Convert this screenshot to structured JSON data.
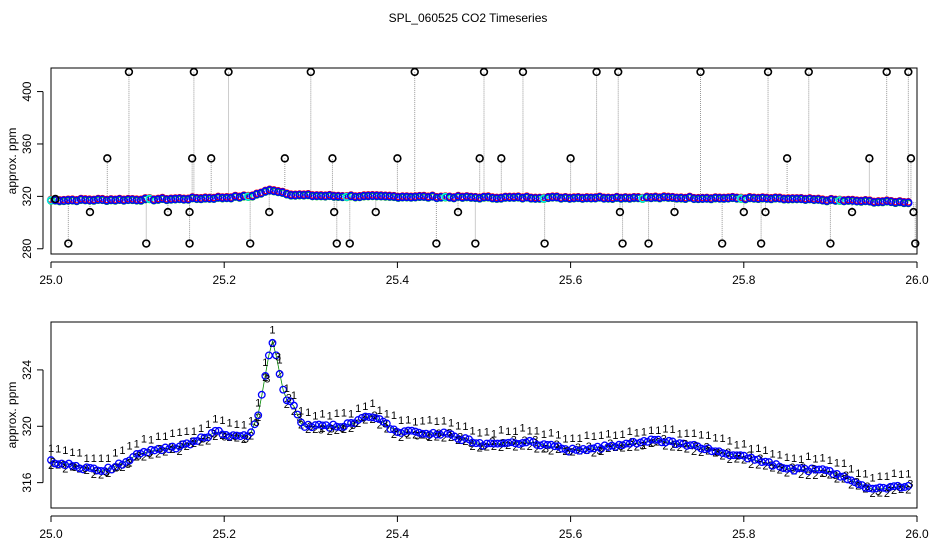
{
  "title": "SPL_060525  CO2 Timeseries",
  "chart_data": [
    {
      "type": "scatter",
      "panel": "top",
      "ylabel": "approx. ppm",
      "xlabel": "",
      "xlim": [
        25.0,
        26.0
      ],
      "ylim": [
        276,
        418
      ],
      "x_ticks": [
        "25.0",
        "25.2",
        "25.4",
        "25.6",
        "25.8",
        "26.0"
      ],
      "y_ticks": [
        "280",
        "320",
        "360",
        "400"
      ],
      "grid": false,
      "base_series": {
        "x": [
          25.0,
          25.1,
          25.15,
          25.2,
          25.23,
          25.255,
          25.28,
          25.33,
          25.35,
          25.45,
          25.5,
          25.6,
          25.66,
          25.7,
          25.8,
          25.85,
          25.9,
          25.95,
          25.99
        ],
        "y": [
          317,
          317.5,
          318,
          319,
          320,
          325,
          321,
          320,
          320,
          319.5,
          319,
          319,
          319,
          319,
          318.5,
          318,
          317,
          316,
          315.5
        ]
      },
      "outliers": {
        "x": [
          25.005,
          25.02,
          25.045,
          25.065,
          25.09,
          25.11,
          25.135,
          25.16,
          25.16,
          25.163,
          25.165,
          25.185,
          25.205,
          25.23,
          25.252,
          25.27,
          25.3,
          25.325,
          25.327,
          25.33,
          25.345,
          25.375,
          25.4,
          25.42,
          25.445,
          25.47,
          25.49,
          25.495,
          25.5,
          25.52,
          25.545,
          25.57,
          25.6,
          25.63,
          25.655,
          25.657,
          25.66,
          25.69,
          25.72,
          25.75,
          25.775,
          25.8,
          25.82,
          25.825,
          25.828,
          25.85,
          25.875,
          25.9,
          25.925,
          25.945,
          25.965,
          25.99,
          25.993,
          25.996,
          25.998
        ],
        "y": [
          318,
          284,
          308,
          349,
          415,
          284,
          308,
          284,
          308,
          349,
          415,
          349,
          415,
          284,
          308,
          349,
          415,
          349,
          308,
          284,
          284,
          308,
          349,
          415,
          284,
          308,
          284,
          349,
          415,
          349,
          415,
          284,
          349,
          415,
          415,
          308,
          284,
          284,
          308,
          415,
          284,
          308,
          284,
          308,
          415,
          349,
          415,
          284,
          308,
          349,
          415,
          415,
          349,
          308,
          284
        ]
      },
      "colors": {
        "circle": "#0000ff",
        "cyan": "#00e5ee",
        "red": "#ff0000",
        "green": "#00cc00",
        "outlier": "#000000",
        "line": "#999999"
      }
    },
    {
      "type": "scatter",
      "panel": "bottom",
      "ylabel": "approx. ppm",
      "xlabel": "",
      "xlim": [
        25.0,
        26.0
      ],
      "ylim": [
        314.2,
        327.4
      ],
      "x_ticks": [
        "25.0",
        "25.2",
        "25.4",
        "25.6",
        "25.8",
        "26.0"
      ],
      "y_ticks": [
        "316",
        "320",
        "324"
      ],
      "grid": false,
      "series": {
        "x": [
          25.0,
          25.02,
          25.04,
          25.06,
          25.08,
          25.1,
          25.12,
          25.15,
          25.17,
          25.19,
          25.2,
          25.21,
          25.23,
          25.24,
          25.25,
          25.255,
          25.26,
          25.27,
          25.28,
          25.29,
          25.3,
          25.33,
          25.35,
          25.37,
          25.4,
          25.45,
          25.5,
          25.55,
          25.6,
          25.65,
          25.7,
          25.75,
          25.8,
          25.85,
          25.9,
          25.95,
          25.99
        ],
        "y": [
          317.5,
          317.3,
          317.0,
          316.8,
          317.3,
          318.0,
          318.3,
          318.6,
          319.0,
          319.6,
          319.5,
          319.3,
          319.4,
          321.0,
          324.5,
          326.2,
          325.0,
          322.0,
          321.5,
          320.0,
          320.0,
          320.0,
          320.2,
          320.8,
          319.6,
          319.5,
          318.7,
          318.9,
          318.3,
          318.6,
          319.0,
          318.5,
          317.8,
          317.0,
          316.8,
          315.5,
          315.8
        ]
      },
      "point_labels": [
        "1",
        "2",
        "3"
      ],
      "colors": {
        "1": "#ff0000",
        "2": "#00cc00",
        "3": "#0000cc",
        "circle": "#0000ff",
        "line": "#008800"
      }
    }
  ]
}
